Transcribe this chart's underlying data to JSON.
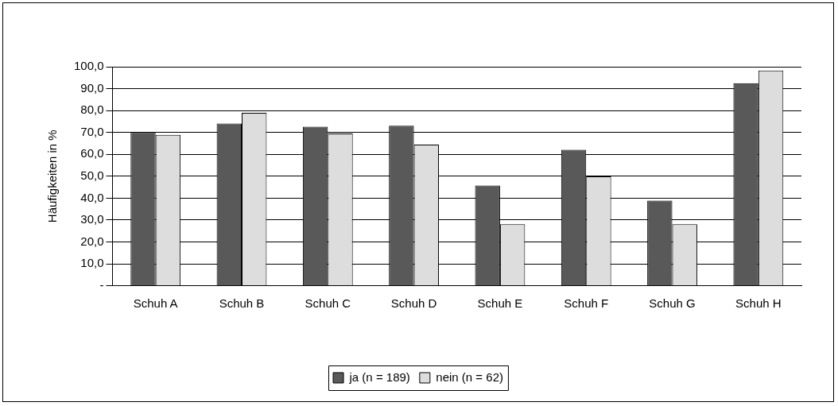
{
  "chart_data": {
    "type": "bar",
    "ylabel": "Häufigkeiten in %",
    "categories": [
      "Schuh A",
      "Schuh B",
      "Schuh C",
      "Schuh D",
      "Schuh E",
      "Schuh F",
      "Schuh G",
      "Schuh H"
    ],
    "series": [
      {
        "name": "ja (n = 189)",
        "color": "#595959",
        "values": [
          70.2,
          74.1,
          72.6,
          73.1,
          45.8,
          62.1,
          38.9,
          92.5
        ]
      },
      {
        "name": "nein (n = 62)",
        "color": "#dddddd",
        "values": [
          68.9,
          79.0,
          69.5,
          64.4,
          28.1,
          49.9,
          28.1,
          98.3
        ]
      }
    ],
    "ylim": [
      0,
      100
    ],
    "yticks": [
      {
        "value": 0,
        "label": "-"
      },
      {
        "value": 10,
        "label": "10,0"
      },
      {
        "value": 20,
        "label": "20,0"
      },
      {
        "value": 30,
        "label": "30,0"
      },
      {
        "value": 40,
        "label": "40,0"
      },
      {
        "value": 50,
        "label": "50,0"
      },
      {
        "value": 60,
        "label": "60,0"
      },
      {
        "value": 70,
        "label": "70,0"
      },
      {
        "value": 80,
        "label": "80,0"
      },
      {
        "value": 90,
        "label": "90,0"
      },
      {
        "value": 100,
        "label": "100,0"
      }
    ],
    "grid": "y",
    "legend": "bottom"
  }
}
